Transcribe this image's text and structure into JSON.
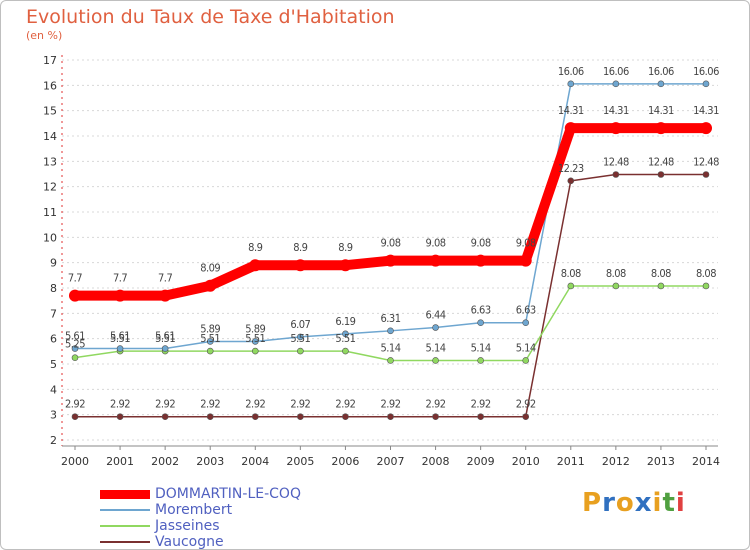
{
  "header": {
    "title": "Evolution du Taux de Taxe d'Habitation",
    "unit": "(en %)"
  },
  "logo": {
    "letters": [
      "P",
      "r",
      "o",
      "x",
      "i",
      "t",
      "i"
    ],
    "colors": [
      "#e8a020",
      "#3070c0",
      "#e8a020",
      "#3070c0",
      "#e8a020",
      "#50a040",
      "#e04040"
    ]
  },
  "chart_data": {
    "type": "line",
    "x": [
      "2000",
      "2001",
      "2002",
      "2003",
      "2004",
      "2005",
      "2006",
      "2007",
      "2008",
      "2009",
      "2010",
      "2011",
      "2012",
      "2013",
      "2014"
    ],
    "ylim": [
      2,
      17
    ],
    "yticks": [
      "2",
      "3",
      "4",
      "5",
      "6",
      "7",
      "8",
      "9",
      "10",
      "11",
      "12",
      "13",
      "14",
      "15",
      "16",
      "17"
    ],
    "grid": "horizontal dashed",
    "legend_position": "bottom-left",
    "series": [
      {
        "name": "DOMMARTIN-LE-COQ",
        "color": "#ff0000",
        "values": [
          7.7,
          7.7,
          7.7,
          8.09,
          8.9,
          8.9,
          8.9,
          9.08,
          9.08,
          9.08,
          9.08,
          14.31,
          14.31,
          14.31,
          14.31
        ],
        "labels": [
          "7.7",
          "7.7",
          "7.7",
          "8.09",
          "8.9",
          "8.9",
          "8.9",
          "9.08",
          "9.08",
          "9.08",
          "9.08",
          "14.31",
          "14.31",
          "14.31",
          "14.31"
        ]
      },
      {
        "name": "Morembert",
        "color": "#6ea6d0",
        "values": [
          5.61,
          5.61,
          5.61,
          5.89,
          5.89,
          6.07,
          6.19,
          6.31,
          6.44,
          6.63,
          6.63,
          16.06,
          16.06,
          16.06,
          16.06
        ],
        "labels": [
          "5.61",
          "5.61",
          "5.61",
          "5.89",
          "5.89",
          "6.07",
          "6.19",
          "6.31",
          "6.44",
          "6.63",
          "6.63",
          "16.06",
          "16.06",
          "16.06",
          "16.06"
        ]
      },
      {
        "name": "Jasseines",
        "color": "#90d860",
        "values": [
          5.25,
          5.51,
          5.51,
          5.51,
          5.51,
          5.51,
          5.51,
          5.14,
          5.14,
          5.14,
          5.14,
          8.08,
          8.08,
          8.08,
          8.08
        ],
        "labels": [
          "5.25",
          "5.51",
          "5.51",
          "5.51",
          "5.51",
          "5.51",
          "5.51",
          "5.14",
          "5.14",
          "5.14",
          "5.14",
          "8.08",
          "8.08",
          "8.08",
          "8.08"
        ]
      },
      {
        "name": "Vaucogne",
        "color": "#7a3030",
        "values": [
          2.92,
          2.92,
          2.92,
          2.92,
          2.92,
          2.92,
          2.92,
          2.92,
          2.92,
          2.92,
          2.92,
          12.23,
          12.48,
          12.48,
          12.48
        ],
        "labels": [
          "2.92",
          "2.92",
          "2.92",
          "2.92",
          "2.92",
          "2.92",
          "2.92",
          "2.92",
          "2.92",
          "2.92",
          "2.92",
          "12.23",
          "12.48",
          "12.48",
          "12.48"
        ]
      }
    ]
  }
}
